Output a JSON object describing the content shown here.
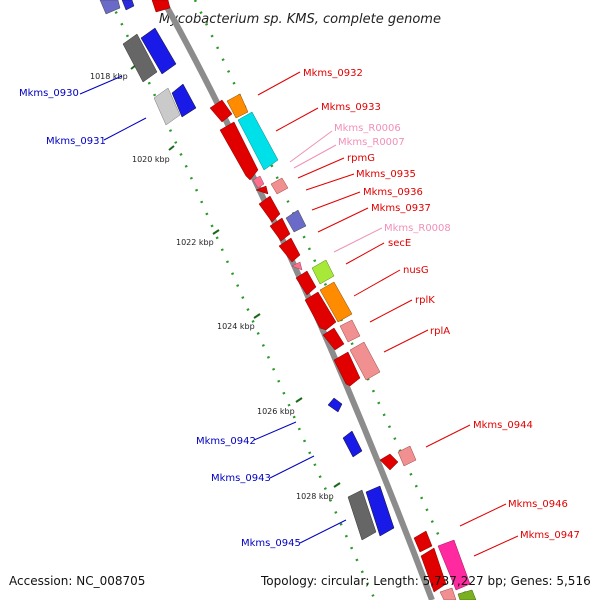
{
  "title": "Mycobacterium sp. KMS, complete genome",
  "footer": {
    "accession_label": "Accession:",
    "accession": "NC_008705",
    "topology_label": "Topology:",
    "topology": "circular",
    "length_label": "Length:",
    "length": "5,737,227 bp",
    "genes_label": "Genes:",
    "genes": "5,516"
  },
  "ticks": [
    "1018 kbp",
    "1020 kbp",
    "1022 kbp",
    "1024 kbp",
    "1026 kbp",
    "1028 kbp"
  ],
  "forward_labels": [
    "Mkms_0932",
    "Mkms_0933",
    "Mkms_R0006",
    "Mkms_R0007",
    "rpmG",
    "Mkms_0935",
    "Mkms_0936",
    "Mkms_0937",
    "Mkms_R0008",
    "secE",
    "nusG",
    "rplK",
    "rplA",
    "Mkms_0944",
    "Mkms_0946",
    "Mkms_0947"
  ],
  "reverse_labels": [
    "Mkms_0930",
    "Mkms_0931",
    "Mkms_0942",
    "Mkms_0943",
    "Mkms_0945"
  ],
  "colors": {
    "forward_label": "#e00000",
    "rna_label": "#f090b8",
    "reverse_label": "#0000c0",
    "backbone": "#909090",
    "dots": "#2a9a2a"
  }
}
